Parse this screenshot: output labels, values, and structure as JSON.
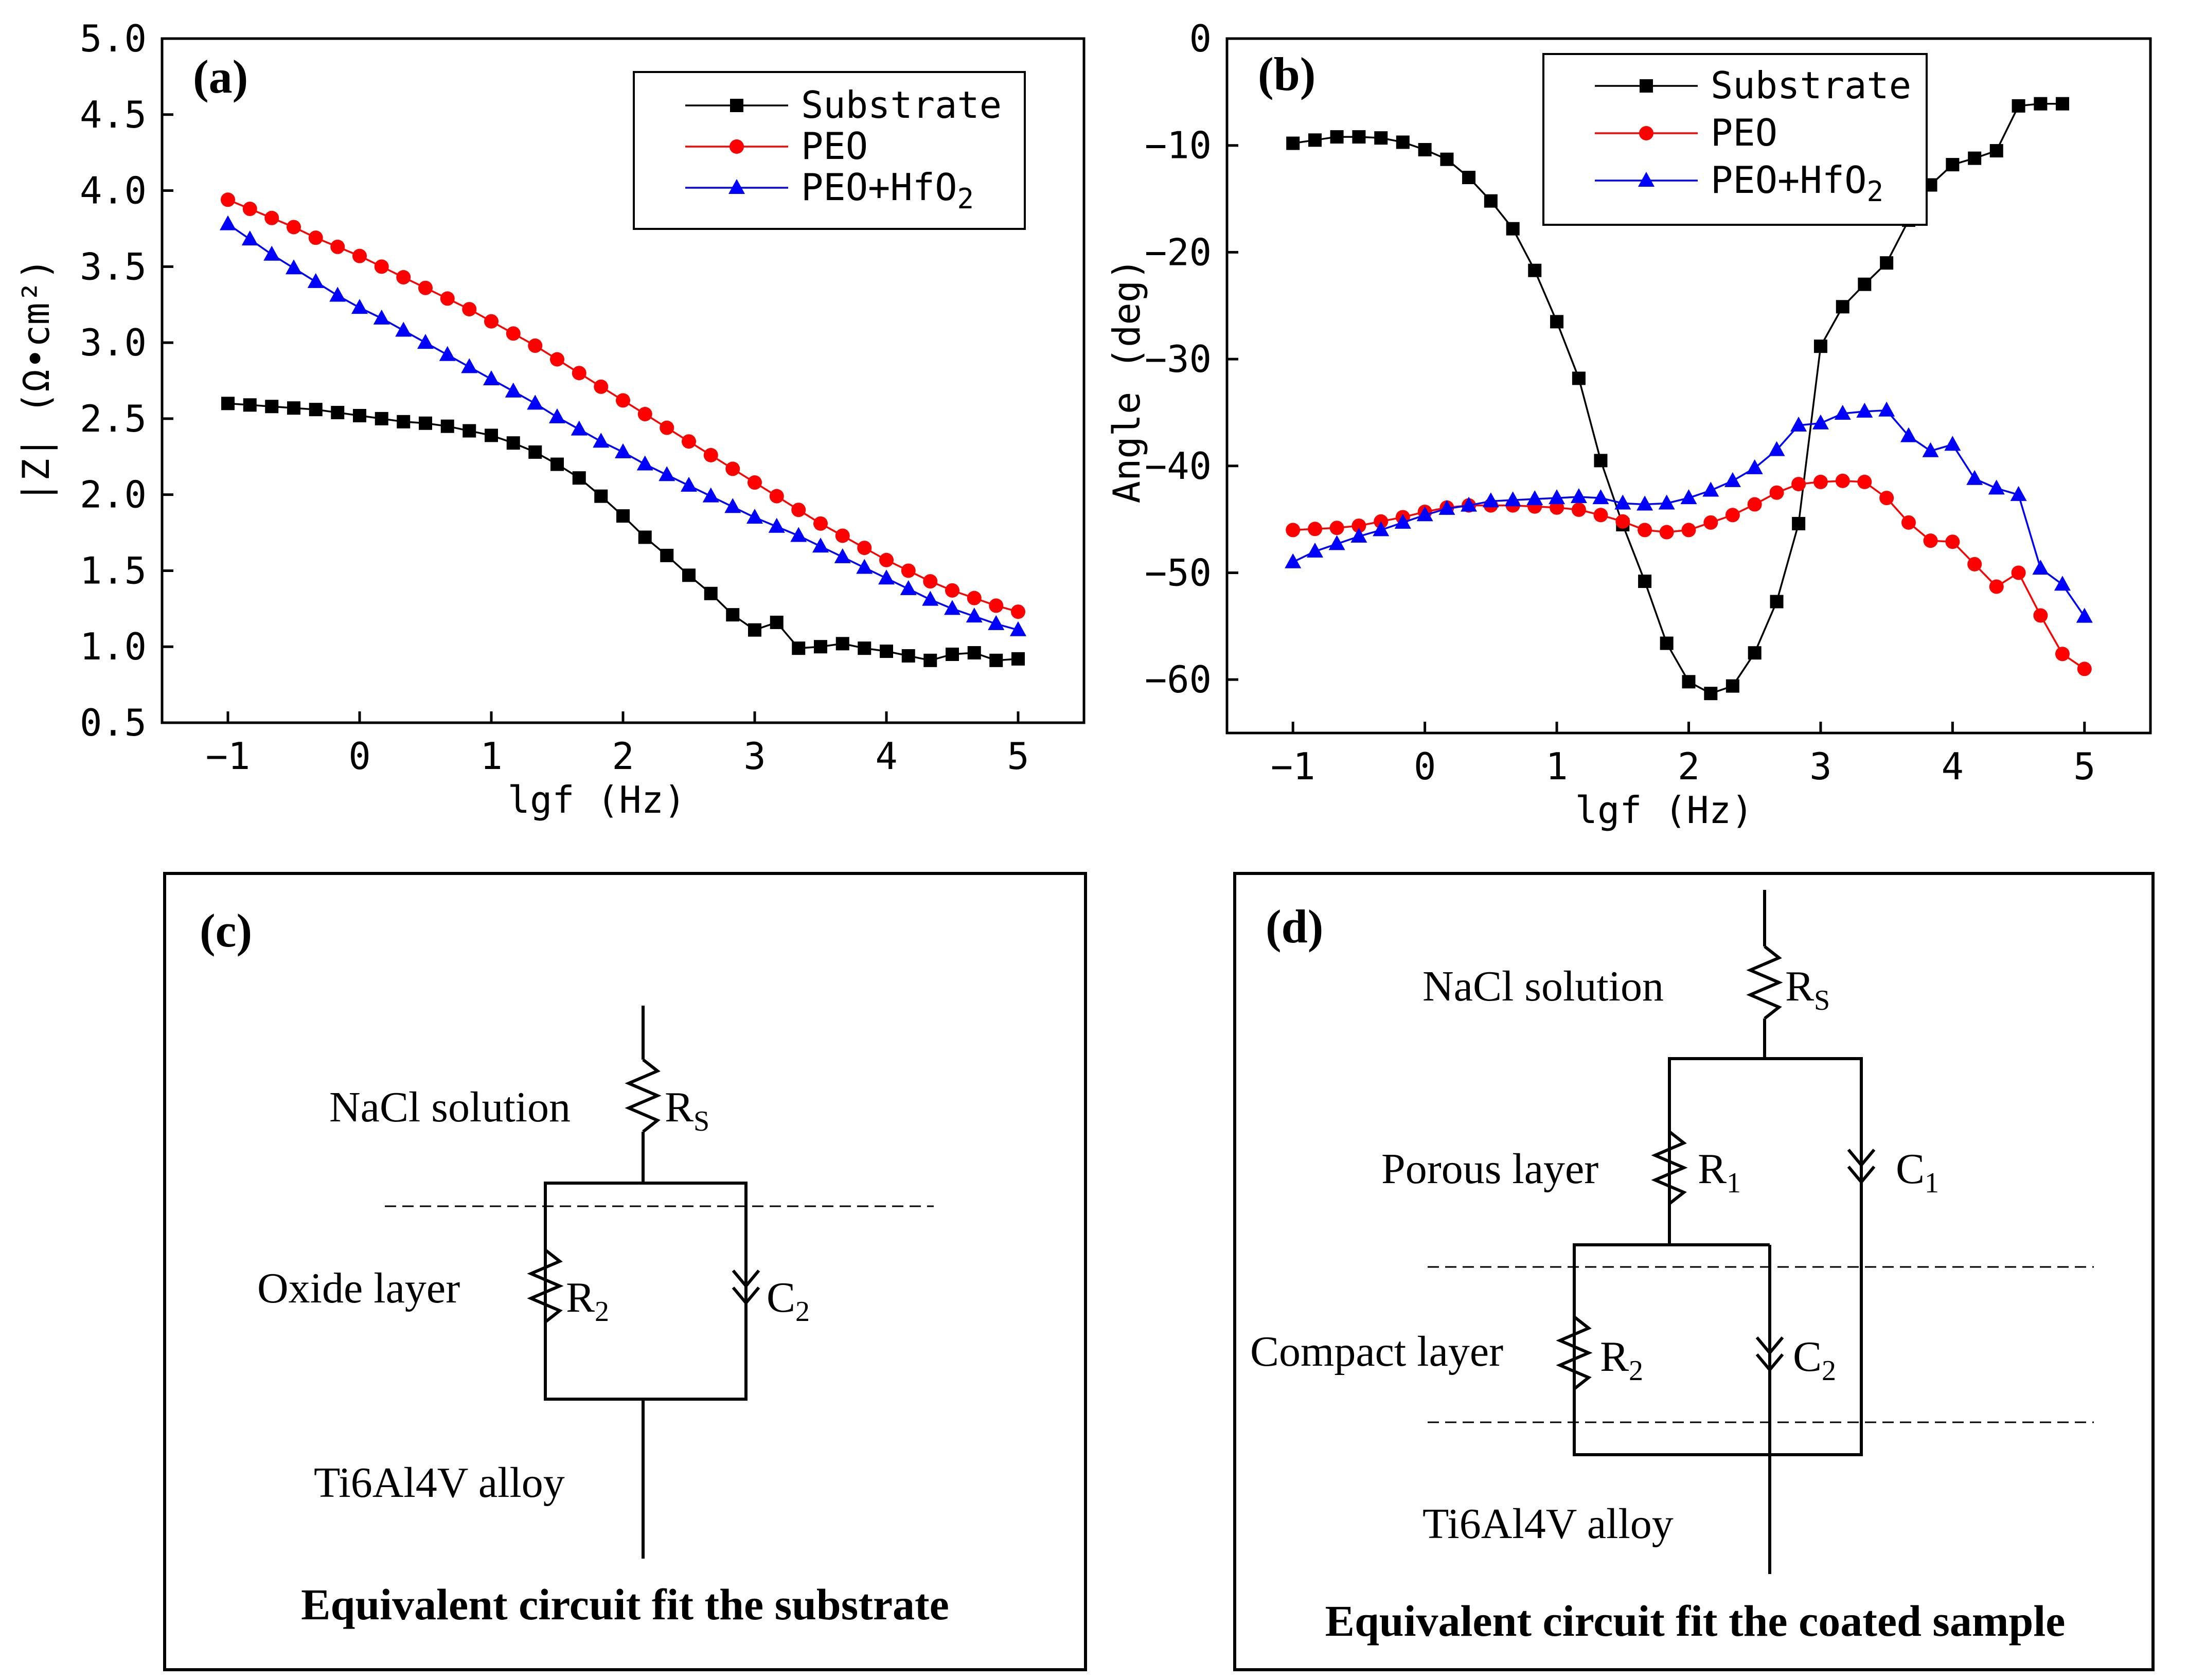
{
  "chart_data": [
    {
      "panel": "(a)",
      "type": "line",
      "xlabel": "lgf (Hz)",
      "ylabel": "|Z| (Ω•cm²)",
      "xlim": [
        -1.5,
        5.5
      ],
      "ylim": [
        0.5,
        5.0
      ],
      "xticks": [
        "−1",
        "0",
        "1",
        "2",
        "3",
        "4",
        "5"
      ],
      "yticks": [
        "0.5",
        "1.0",
        "1.5",
        "2.0",
        "2.5",
        "3.0",
        "3.5",
        "4.0",
        "4.5",
        "5.0"
      ],
      "xtick_values": [
        -1,
        0,
        1,
        2,
        3,
        4,
        5
      ],
      "ytick_values": [
        0.5,
        1.0,
        1.5,
        2.0,
        2.5,
        3.0,
        3.5,
        4.0,
        4.5,
        5.0
      ],
      "legend": {
        "placement": "top-right",
        "entries": [
          "Substrate",
          "PEO",
          "PEO+HfO2"
        ]
      },
      "x": [
        -1.0,
        -0.833,
        -0.667,
        -0.5,
        -0.333,
        -0.167,
        0.0,
        0.167,
        0.333,
        0.5,
        0.667,
        0.833,
        1.0,
        1.167,
        1.333,
        1.5,
        1.667,
        1.833,
        2.0,
        2.167,
        2.333,
        2.5,
        2.667,
        2.833,
        3.0,
        3.167,
        3.333,
        3.5,
        3.667,
        3.833,
        4.0,
        4.167,
        4.333,
        4.5,
        4.667,
        4.833,
        5.0
      ],
      "series": [
        {
          "name": "Substrate",
          "color": "#000000",
          "marker": "square",
          "values": [
            2.6,
            2.59,
            2.58,
            2.57,
            2.56,
            2.54,
            2.52,
            2.5,
            2.48,
            2.47,
            2.45,
            2.42,
            2.39,
            2.34,
            2.28,
            2.2,
            2.11,
            1.99,
            1.86,
            1.72,
            1.6,
            1.47,
            1.35,
            1.21,
            1.11,
            1.16,
            0.99,
            1.0,
            1.02,
            0.99,
            0.97,
            0.94,
            0.91,
            0.95,
            0.96,
            0.91,
            0.92
          ]
        },
        {
          "name": "PEO",
          "color": "#ff0000",
          "marker": "circle",
          "values": [
            3.94,
            3.88,
            3.82,
            3.76,
            3.69,
            3.63,
            3.57,
            3.5,
            3.43,
            3.36,
            3.29,
            3.22,
            3.14,
            3.06,
            2.98,
            2.89,
            2.8,
            2.71,
            2.62,
            2.53,
            2.44,
            2.35,
            2.26,
            2.17,
            2.08,
            1.99,
            1.9,
            1.81,
            1.73,
            1.65,
            1.57,
            1.5,
            1.43,
            1.37,
            1.32,
            1.27,
            1.23
          ]
        },
        {
          "name": "PEO+HfO2",
          "color": "#0000ff",
          "marker": "triangle",
          "values": [
            3.78,
            3.68,
            3.58,
            3.49,
            3.4,
            3.31,
            3.23,
            3.16,
            3.08,
            3.0,
            2.92,
            2.84,
            2.76,
            2.68,
            2.6,
            2.51,
            2.43,
            2.35,
            2.28,
            2.2,
            2.13,
            2.06,
            1.99,
            1.92,
            1.85,
            1.79,
            1.73,
            1.66,
            1.59,
            1.52,
            1.45,
            1.38,
            1.31,
            1.25,
            1.2,
            1.15,
            1.11
          ]
        }
      ]
    },
    {
      "panel": "(b)",
      "type": "line",
      "xlabel": "lgf (Hz)",
      "ylabel": "Angle (deg)",
      "xlim": [
        -1.5,
        5.5
      ],
      "ylim": [
        -65,
        0
      ],
      "xticks": [
        "−1",
        "0",
        "1",
        "2",
        "3",
        "4",
        "5"
      ],
      "yticks": [
        "0",
        "−10",
        "−20",
        "−30",
        "−40",
        "−50",
        "−60"
      ],
      "xtick_values": [
        -1,
        0,
        1,
        2,
        3,
        4,
        5
      ],
      "ytick_values": [
        0,
        -10,
        -20,
        -30,
        -40,
        -50,
        -60
      ],
      "legend": {
        "placement": "top-right",
        "entries": [
          "Substrate",
          "PEO",
          "PEO+HfO2"
        ]
      },
      "x": [
        -1.0,
        -0.833,
        -0.667,
        -0.5,
        -0.333,
        -0.167,
        0.0,
        0.167,
        0.333,
        0.5,
        0.667,
        0.833,
        1.0,
        1.167,
        1.333,
        1.5,
        1.667,
        1.833,
        2.0,
        2.167,
        2.333,
        2.5,
        2.667,
        2.833,
        3.0,
        3.167,
        3.333,
        3.5,
        3.667,
        3.833,
        4.0,
        4.167,
        4.333,
        4.5,
        4.667,
        4.833,
        5.0
      ],
      "series": [
        {
          "name": "Substrate",
          "color": "#000000",
          "marker": "square",
          "x": [
            -1.0,
            -0.833,
            -0.667,
            -0.5,
            -0.333,
            -0.167,
            0.0,
            0.167,
            0.333,
            0.5,
            0.667,
            0.833,
            1.0,
            1.167,
            1.333,
            1.5,
            1.667,
            1.833,
            2.0,
            2.167,
            2.333,
            2.5,
            2.667,
            2.833,
            3.0,
            3.167,
            3.333,
            3.5,
            3.667,
            3.833,
            4.0,
            4.167,
            4.333,
            4.5,
            4.667,
            4.833
          ],
          "values": [
            -9.8,
            -9.5,
            -9.2,
            -9.2,
            -9.3,
            -9.7,
            -10.4,
            -11.3,
            -13.0,
            -15.2,
            -17.8,
            -21.7,
            -26.5,
            -31.8,
            -39.5,
            -45.5,
            -50.8,
            -56.6,
            -60.2,
            -61.3,
            -60.6,
            -57.5,
            -52.7,
            -45.4,
            -28.8,
            -25.1,
            -23.0,
            -21.0,
            -17.0,
            -13.7,
            -11.8,
            -11.2,
            -10.5,
            -6.3,
            -6.1,
            -6.1
          ]
        },
        {
          "name": "PEO",
          "color": "#ff0000",
          "marker": "circle",
          "values": [
            -46.0,
            -45.9,
            -45.8,
            -45.6,
            -45.2,
            -44.8,
            -44.3,
            -43.9,
            -43.7,
            -43.7,
            -43.7,
            -43.8,
            -43.9,
            -44.1,
            -44.6,
            -45.2,
            -46.0,
            -46.2,
            -46.0,
            -45.3,
            -44.6,
            -43.6,
            -42.5,
            -41.7,
            -41.5,
            -41.4,
            -41.5,
            -43.0,
            -45.3,
            -47.0,
            -47.1,
            -49.2,
            -51.3,
            -50.0,
            -54.0,
            -57.6,
            -59.0
          ]
        },
        {
          "name": "PEO+HfO2",
          "color": "#0000ff",
          "marker": "triangle",
          "values": [
            -49.0,
            -48.0,
            -47.3,
            -46.6,
            -46.0,
            -45.3,
            -44.6,
            -44.0,
            -43.7,
            -43.3,
            -43.2,
            -43.1,
            -43.0,
            -42.9,
            -43.0,
            -43.5,
            -43.6,
            -43.5,
            -43.0,
            -42.3,
            -41.4,
            -40.2,
            -38.5,
            -36.2,
            -36.0,
            -35.1,
            -34.9,
            -34.8,
            -37.2,
            -38.6,
            -38.0,
            -41.2,
            -42.1,
            -42.7,
            -49.6,
            -51.1,
            -54.1
          ]
        }
      ]
    }
  ],
  "panels": {
    "a_label": "(a)",
    "b_label": "(b)",
    "c_label": "(c)",
    "d_label": "(d)"
  },
  "circuit_c": {
    "solution": "NaCl solution",
    "rs": "R",
    "rs_sub": "S",
    "layer": "Oxide layer",
    "r2": "R",
    "r2_sub": "2",
    "c2": "C",
    "c2_sub": "2",
    "alloy": "Ti6Al4V alloy",
    "caption": "Equivalent circuit fit the substrate"
  },
  "circuit_d": {
    "solution": "NaCl solution",
    "rs": "R",
    "rs_sub": "S",
    "porous": "Porous layer",
    "r1": "R",
    "r1_sub": "1",
    "c1": "C",
    "c1_sub": "1",
    "compact": "Compact layer",
    "r2": "R",
    "r2_sub": "2",
    "c2": "C",
    "c2_sub": "2",
    "alloy": "Ti6Al4V alloy",
    "caption": "Equivalent circuit fit the coated sample"
  }
}
